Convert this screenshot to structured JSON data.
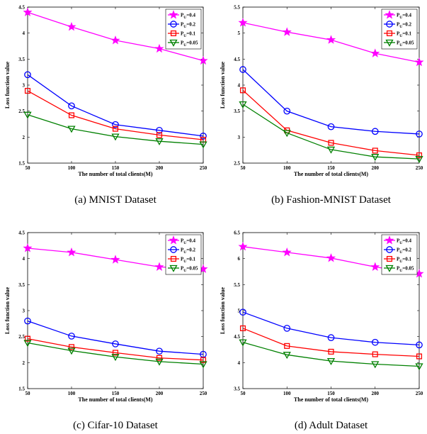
{
  "chart_data": [
    {
      "type": "line",
      "caption": "(a) MNIST Dataset",
      "xlabel": "The number of total clients(M)",
      "ylabel": "Loss function value",
      "x": [
        50,
        100,
        150,
        200,
        250
      ],
      "xticks": [
        "50",
        "100",
        "150",
        "200",
        "250"
      ],
      "ylim": [
        1.5,
        4.5
      ],
      "yticks": [
        "1.5",
        "2",
        "2.5",
        "3",
        "3.5",
        "4",
        "4.5"
      ],
      "legend": "top-right",
      "series": [
        {
          "name": "P_U=0.4",
          "values": [
            4.4,
            4.12,
            3.86,
            3.7,
            3.47
          ]
        },
        {
          "name": "P_U=0.2",
          "values": [
            3.2,
            2.6,
            2.24,
            2.13,
            2.02
          ]
        },
        {
          "name": "P_U=0.1",
          "values": [
            2.89,
            2.42,
            2.16,
            2.04,
            1.95
          ]
        },
        {
          "name": "P_U=0.05",
          "values": [
            2.43,
            2.16,
            2.01,
            1.92,
            1.86
          ]
        }
      ]
    },
    {
      "type": "line",
      "caption": "(b) Fashion-MNIST Dataset",
      "xlabel": "The number of total clients(M)",
      "ylabel": "Loss function value",
      "x": [
        50,
        100,
        150,
        200,
        250
      ],
      "xticks": [
        "50",
        "100",
        "150",
        "200",
        "250"
      ],
      "ylim": [
        2.5,
        5.5
      ],
      "yticks": [
        "2.5",
        "3",
        "3.5",
        "4",
        "4.5",
        "5",
        "5.5"
      ],
      "legend": "top-right",
      "series": [
        {
          "name": "P_U=0.4",
          "values": [
            5.2,
            5.02,
            4.87,
            4.61,
            4.44
          ]
        },
        {
          "name": "P_U=0.2",
          "values": [
            4.3,
            3.5,
            3.2,
            3.11,
            3.06
          ]
        },
        {
          "name": "P_U=0.1",
          "values": [
            3.9,
            3.13,
            2.89,
            2.74,
            2.65
          ]
        },
        {
          "name": "P_U=0.05",
          "values": [
            3.63,
            3.08,
            2.76,
            2.62,
            2.58
          ]
        }
      ]
    },
    {
      "type": "line",
      "caption": "(c) Cifar-10 Dataset",
      "xlabel": "The number of total clients(M)",
      "ylabel": "Loss function value",
      "x": [
        50,
        100,
        150,
        200,
        250
      ],
      "xticks": [
        "50",
        "100",
        "150",
        "200",
        "250"
      ],
      "ylim": [
        1.5,
        4.5
      ],
      "yticks": [
        "1.5",
        "2",
        "2.5",
        "3",
        "3.5",
        "4",
        "4.5"
      ],
      "legend": "top-right",
      "series": [
        {
          "name": "P_U=0.4",
          "values": [
            4.2,
            4.12,
            3.98,
            3.84,
            3.8
          ]
        },
        {
          "name": "P_U=0.2",
          "values": [
            2.8,
            2.51,
            2.36,
            2.22,
            2.16
          ]
        },
        {
          "name": "P_U=0.1",
          "values": [
            2.46,
            2.3,
            2.19,
            2.09,
            2.05
          ]
        },
        {
          "name": "P_U=0.05",
          "values": [
            2.38,
            2.23,
            2.11,
            2.02,
            1.97
          ]
        }
      ]
    },
    {
      "type": "line",
      "caption": "(d) Adult Dataset",
      "xlabel": "The number of total clients(M)",
      "ylabel": "Loss function value",
      "x": [
        50,
        100,
        150,
        200,
        250
      ],
      "xticks": [
        "50",
        "100",
        "150",
        "200",
        "250"
      ],
      "ylim": [
        3.5,
        6.5
      ],
      "yticks": [
        "3.5",
        "4",
        "4.5",
        "5",
        "5.5",
        "6",
        "6.5"
      ],
      "legend": "top-right",
      "series": [
        {
          "name": "P_U=0.4",
          "values": [
            6.23,
            6.12,
            6.01,
            5.84,
            5.71
          ]
        },
        {
          "name": "P_U=0.2",
          "values": [
            4.97,
            4.66,
            4.48,
            4.39,
            4.34
          ]
        },
        {
          "name": "P_U=0.1",
          "values": [
            4.66,
            4.32,
            4.21,
            4.16,
            4.12
          ]
        },
        {
          "name": "P_U=0.05",
          "values": [
            4.39,
            4.15,
            4.03,
            3.97,
            3.93
          ]
        }
      ]
    }
  ],
  "series_style": [
    {
      "color": "#ff00ff",
      "marker": "star"
    },
    {
      "color": "#0000ff",
      "marker": "circle"
    },
    {
      "color": "#ff0000",
      "marker": "square"
    },
    {
      "color": "#008000",
      "marker": "triangle-down"
    }
  ]
}
